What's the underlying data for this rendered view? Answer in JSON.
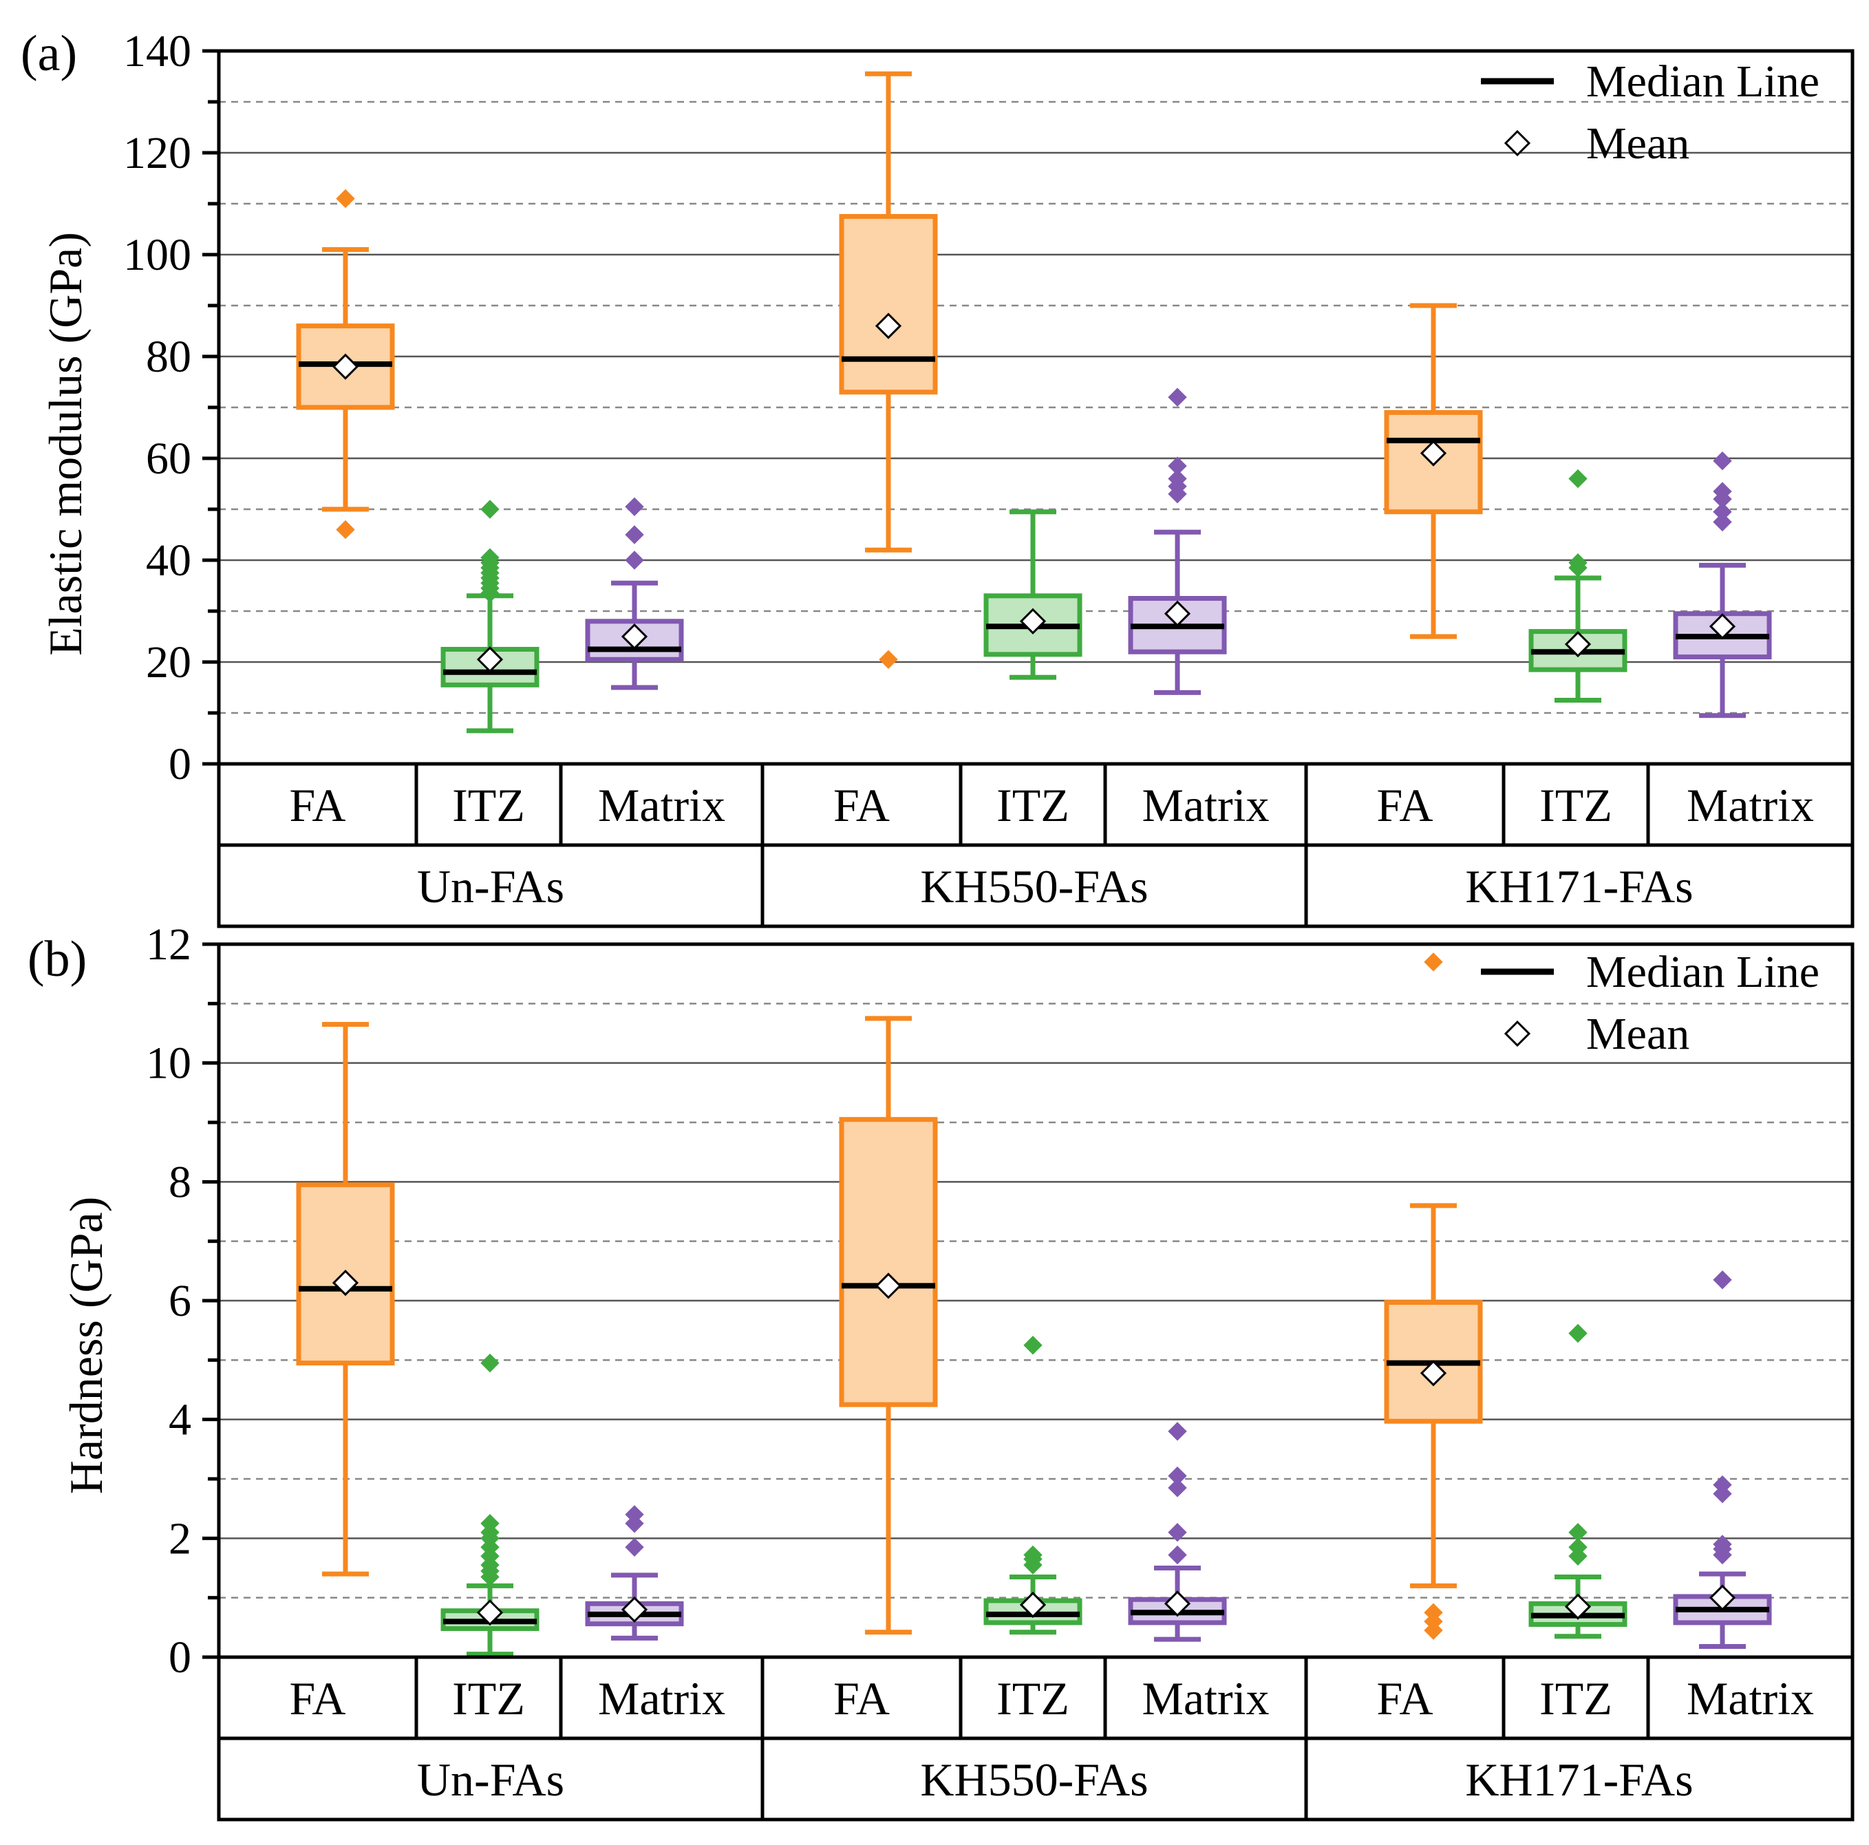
{
  "colors": {
    "FA": {
      "stroke": "#f7881f",
      "fill": "#fdd3a8"
    },
    "ITZ": {
      "stroke": "#3fab3f",
      "fill": "#bfe6bf"
    },
    "Matrix": {
      "stroke": "#8159b1",
      "fill": "#d9cbea"
    },
    "median": "#000000",
    "axis": "#000000",
    "grid_major": "#555555",
    "grid_minor": "#888888"
  },
  "legend_labels": {
    "median": "Median Line",
    "mean": "Mean"
  },
  "chart_data": [
    {
      "type": "box",
      "panel_label": "(a)",
      "ylabel": "Elastic modulus (GPa)",
      "ylim": [
        0,
        140
      ],
      "yticks": [
        0,
        20,
        40,
        60,
        80,
        100,
        120,
        140
      ],
      "grid": {
        "major_step": 20,
        "minor_step": 10,
        "minor_dashed": true
      },
      "legend_position": "top-right",
      "categories": [
        "FA",
        "ITZ",
        "Matrix",
        "FA",
        "ITZ",
        "Matrix",
        "FA",
        "ITZ",
        "Matrix"
      ],
      "groups": [
        "Un-FAs",
        "KH550-FAs",
        "KH171-FAs"
      ],
      "boxes": [
        {
          "group": "Un-FAs",
          "material": "FA",
          "whisker_low": 50,
          "q1": 70,
          "median": 78.5,
          "q3": 86,
          "whisker_high": 101,
          "mean": 78,
          "outliers": [
            46,
            111
          ]
        },
        {
          "group": "Un-FAs",
          "material": "ITZ",
          "whisker_low": 6.5,
          "q1": 15.5,
          "median": 18,
          "q3": 22.5,
          "whisker_high": 33,
          "mean": 20.5,
          "outliers": [
            33.5,
            34.5,
            35.5,
            36.5,
            37.5,
            38.5,
            39.5,
            40.5,
            50
          ]
        },
        {
          "group": "Un-FAs",
          "material": "Matrix",
          "whisker_low": 15,
          "q1": 20.5,
          "median": 22.5,
          "q3": 28,
          "whisker_high": 35.5,
          "mean": 25,
          "outliers": [
            40,
            45,
            50.5
          ]
        },
        {
          "group": "KH550-FAs",
          "material": "FA",
          "whisker_low": 42,
          "q1": 73,
          "median": 79.5,
          "q3": 107.5,
          "whisker_high": 135.5,
          "mean": 86,
          "outliers": [
            20.5
          ]
        },
        {
          "group": "KH550-FAs",
          "material": "ITZ",
          "whisker_low": 17,
          "q1": 21.5,
          "median": 27,
          "q3": 33,
          "whisker_high": 49.5,
          "mean": 28,
          "outliers": []
        },
        {
          "group": "KH550-FAs",
          "material": "Matrix",
          "whisker_low": 14,
          "q1": 22,
          "median": 27,
          "q3": 32.5,
          "whisker_high": 45.5,
          "mean": 29.5,
          "outliers": [
            53,
            54.5,
            56,
            58.5,
            72
          ]
        },
        {
          "group": "KH171-FAs",
          "material": "FA",
          "whisker_low": 25,
          "q1": 49.5,
          "median": 63.5,
          "q3": 69,
          "whisker_high": 90,
          "mean": 61,
          "outliers": []
        },
        {
          "group": "KH171-FAs",
          "material": "ITZ",
          "whisker_low": 12.5,
          "q1": 18.5,
          "median": 22,
          "q3": 26,
          "whisker_high": 36.5,
          "mean": 23.5,
          "outliers": [
            38.5,
            39.5,
            56
          ]
        },
        {
          "group": "KH171-FAs",
          "material": "Matrix",
          "whisker_low": 9.5,
          "q1": 21,
          "median": 25,
          "q3": 29.5,
          "whisker_high": 39,
          "mean": 27,
          "outliers": [
            47.5,
            49.5,
            52,
            53.5,
            59.5
          ]
        }
      ]
    },
    {
      "type": "box",
      "panel_label": "(b)",
      "ylabel": "Hardness (GPa)",
      "ylim": [
        0,
        12
      ],
      "yticks": [
        0,
        2,
        4,
        6,
        8,
        10,
        12
      ],
      "grid": {
        "major_step": 2,
        "minor_step": 1,
        "minor_dashed": true
      },
      "legend_position": "top-right",
      "categories": [
        "FA",
        "ITZ",
        "Matrix",
        "FA",
        "ITZ",
        "Matrix",
        "FA",
        "ITZ",
        "Matrix"
      ],
      "groups": [
        "Un-FAs",
        "KH550-FAs",
        "KH171-FAs"
      ],
      "boxes": [
        {
          "group": "Un-FAs",
          "material": "FA",
          "whisker_low": 1.4,
          "q1": 4.95,
          "median": 6.2,
          "q3": 7.95,
          "whisker_high": 10.65,
          "mean": 6.3,
          "outliers": []
        },
        {
          "group": "Un-FAs",
          "material": "ITZ",
          "whisker_low": 0.05,
          "q1": 0.48,
          "median": 0.6,
          "q3": 0.78,
          "whisker_high": 1.2,
          "mean": 0.75,
          "outliers": [
            1.35,
            1.45,
            1.55,
            1.7,
            1.85,
            2.0,
            2.1,
            2.25,
            4.95
          ]
        },
        {
          "group": "Un-FAs",
          "material": "Matrix",
          "whisker_low": 0.32,
          "q1": 0.56,
          "median": 0.72,
          "q3": 0.9,
          "whisker_high": 1.38,
          "mean": 0.8,
          "outliers": [
            1.85,
            2.25,
            2.4
          ]
        },
        {
          "group": "KH550-FAs",
          "material": "FA",
          "whisker_low": 0.42,
          "q1": 4.25,
          "median": 6.25,
          "q3": 9.05,
          "whisker_high": 10.75,
          "mean": 6.25,
          "outliers": []
        },
        {
          "group": "KH550-FAs",
          "material": "ITZ",
          "whisker_low": 0.42,
          "q1": 0.58,
          "median": 0.72,
          "q3": 0.95,
          "whisker_high": 1.35,
          "mean": 0.88,
          "outliers": [
            1.55,
            1.65,
            1.72,
            5.25
          ]
        },
        {
          "group": "KH550-FAs",
          "material": "Matrix",
          "whisker_low": 0.3,
          "q1": 0.58,
          "median": 0.75,
          "q3": 0.97,
          "whisker_high": 1.5,
          "mean": 0.9,
          "outliers": [
            1.72,
            2.1,
            2.85,
            3.05,
            3.8
          ]
        },
        {
          "group": "KH171-FAs",
          "material": "FA",
          "whisker_low": 1.2,
          "q1": 3.97,
          "median": 4.95,
          "q3": 5.97,
          "whisker_high": 7.6,
          "mean": 4.78,
          "outliers": [
            0.45,
            0.6,
            0.75,
            11.7
          ]
        },
        {
          "group": "KH171-FAs",
          "material": "ITZ",
          "whisker_low": 0.35,
          "q1": 0.55,
          "median": 0.7,
          "q3": 0.9,
          "whisker_high": 1.35,
          "mean": 0.85,
          "outliers": [
            1.7,
            1.85,
            2.1,
            5.45
          ]
        },
        {
          "group": "KH171-FAs",
          "material": "Matrix",
          "whisker_low": 0.18,
          "q1": 0.58,
          "median": 0.8,
          "q3": 1.02,
          "whisker_high": 1.4,
          "mean": 1.0,
          "outliers": [
            1.72,
            1.82,
            1.9,
            2.75,
            2.9,
            6.35
          ]
        }
      ]
    }
  ]
}
